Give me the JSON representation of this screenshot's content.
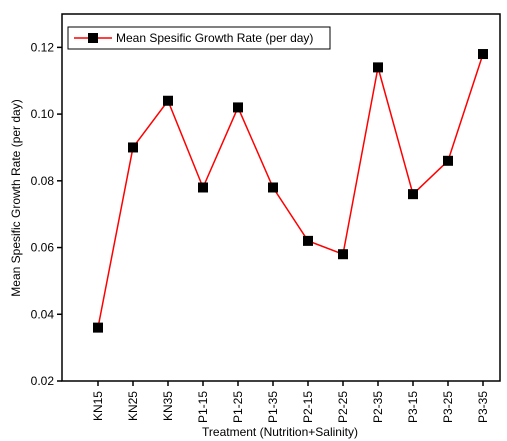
{
  "chart_data": {
    "type": "line",
    "x_label": "Treatment (Nutrition+Salinity)",
    "y_label": "Mean Spesific Growth Rate (per day)",
    "categories": [
      "KN15",
      "KN25",
      "KN35",
      "P1-15",
      "P1-25",
      "P1-35",
      "P2-15",
      "P2-25",
      "P2-35",
      "P3-15",
      "P3-25",
      "P3-35"
    ],
    "series": [
      {
        "name": "Mean Spesific Growth Rate (per day)",
        "color": "#ff0000",
        "values": [
          0.036,
          0.09,
          0.104,
          0.078,
          0.102,
          0.078,
          0.062,
          0.058,
          0.114,
          0.076,
          0.086,
          0.118
        ]
      }
    ],
    "ylim": [
      0.02,
      0.13
    ],
    "yticks": [
      0.02,
      0.04,
      0.06,
      0.08,
      {
        "value": 0.1,
        "label": "0.10"
      },
      {
        "value": 0.12,
        "label": "0.12"
      }
    ],
    "legend": "top-left"
  }
}
